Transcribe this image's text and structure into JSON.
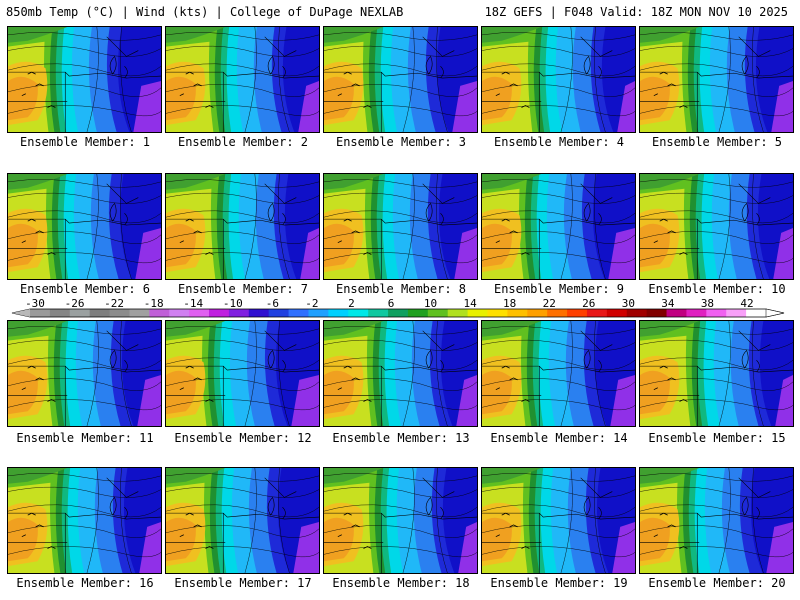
{
  "header": {
    "left": "850mb Temp (°C) | Wind (kts) | College of DuPage NEXLAB",
    "right": "18Z GEFS | F048 Valid: 18Z MON NOV 10 2025"
  },
  "panels": [
    {
      "label": "Ensemble Member: 1"
    },
    {
      "label": "Ensemble Member: 2"
    },
    {
      "label": "Ensemble Member: 3"
    },
    {
      "label": "Ensemble Member: 4"
    },
    {
      "label": "Ensemble Member: 5"
    },
    {
      "label": "Ensemble Member: 6"
    },
    {
      "label": "Ensemble Member: 7"
    },
    {
      "label": "Ensemble Member: 8"
    },
    {
      "label": "Ensemble Member: 9"
    },
    {
      "label": "Ensemble Member: 10"
    },
    {
      "label": "Ensemble Member: 11"
    },
    {
      "label": "Ensemble Member: 12"
    },
    {
      "label": "Ensemble Member: 13"
    },
    {
      "label": "Ensemble Member: 14"
    },
    {
      "label": "Ensemble Member: 15"
    },
    {
      "label": "Ensemble Member: 16"
    },
    {
      "label": "Ensemble Member: 17"
    },
    {
      "label": "Ensemble Member: 18"
    },
    {
      "label": "Ensemble Member: 19"
    },
    {
      "label": "Ensemble Member: 20"
    }
  ],
  "colorbar": {
    "tick_labels": [
      "-30",
      "-26",
      "-22",
      "-18",
      "-14",
      "-10",
      "-6",
      "-2",
      "2",
      "6",
      "10",
      "14",
      "18",
      "22",
      "26",
      "30",
      "34",
      "38",
      "42"
    ],
    "colors": [
      "#9a9a9a",
      "#858585",
      "#9aa0a0",
      "#7e7e7e",
      "#8c8c8c",
      "#a0a0a0",
      "#c060d8",
      "#d080f0",
      "#e060f0",
      "#c020e0",
      "#8020e0",
      "#3010d0",
      "#2040e0",
      "#3070ff",
      "#20a0ff",
      "#00d0ff",
      "#00e8e8",
      "#10c8a0",
      "#10a060",
      "#20a020",
      "#60c020",
      "#b0e020",
      "#e8f000",
      "#ffe000",
      "#ffc000",
      "#ffa000",
      "#ff7000",
      "#ff4000",
      "#e81818",
      "#d00000",
      "#a00000",
      "#800000",
      "#c00080",
      "#e020c0",
      "#f060f0",
      "#f8a0f8",
      "#ffffff"
    ]
  }
}
